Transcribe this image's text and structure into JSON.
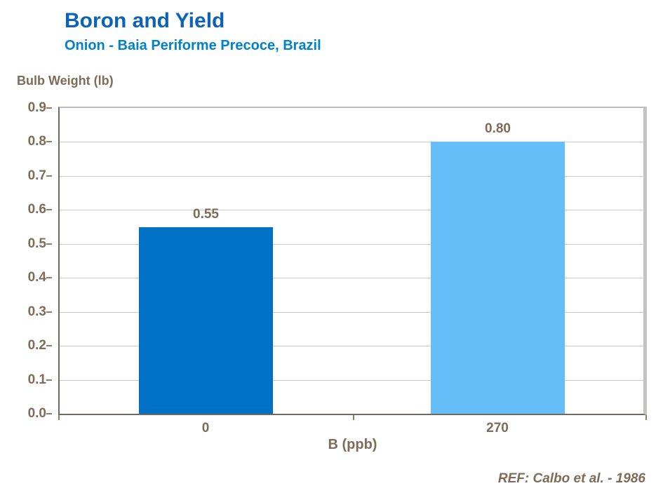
{
  "header": {
    "title": "Boron and Yield",
    "subtitle": "Onion - Baia Periforme Precoce, Brazil"
  },
  "footer": {
    "reference": "REF: Calbo et al. - 1986"
  },
  "colors": {
    "title": "#0C63B5",
    "subtitle": "#0081CD",
    "axis_text": "#7E6C58",
    "axis_line": "#6F6A60",
    "tick_mark": "#8A8070",
    "gridline": "#C9C9C9",
    "plot_top_border": "#BDBDBD",
    "plot_right_border": "#C3C3C3",
    "bar_0": "#0072C6",
    "bar_270": "#66BEF9"
  },
  "chart_data": {
    "type": "bar",
    "title": "Boron and Yield",
    "subtitle": "Onion - Baia Periforme Precoce, Brazil",
    "categories": [
      "0",
      "270"
    ],
    "values": [
      0.55,
      0.8
    ],
    "value_labels": [
      "0.55",
      "0.80"
    ],
    "bar_colors": [
      "#0072C6",
      "#66BEF9"
    ],
    "xlabel": "B (ppb)",
    "ylabel": "Bulb Weight (lb)",
    "ylim": [
      0,
      0.9
    ],
    "ytick_step": 0.1,
    "ytick_labels": [
      "0.0",
      "0.1",
      "0.2",
      "0.3",
      "0.4",
      "0.5",
      "0.6",
      "0.7",
      "0.8",
      "0.9"
    ],
    "grid": "horizontal",
    "legend": "none",
    "bar_width_fraction": 0.46,
    "reference": "REF: Calbo et al. - 1986"
  }
}
